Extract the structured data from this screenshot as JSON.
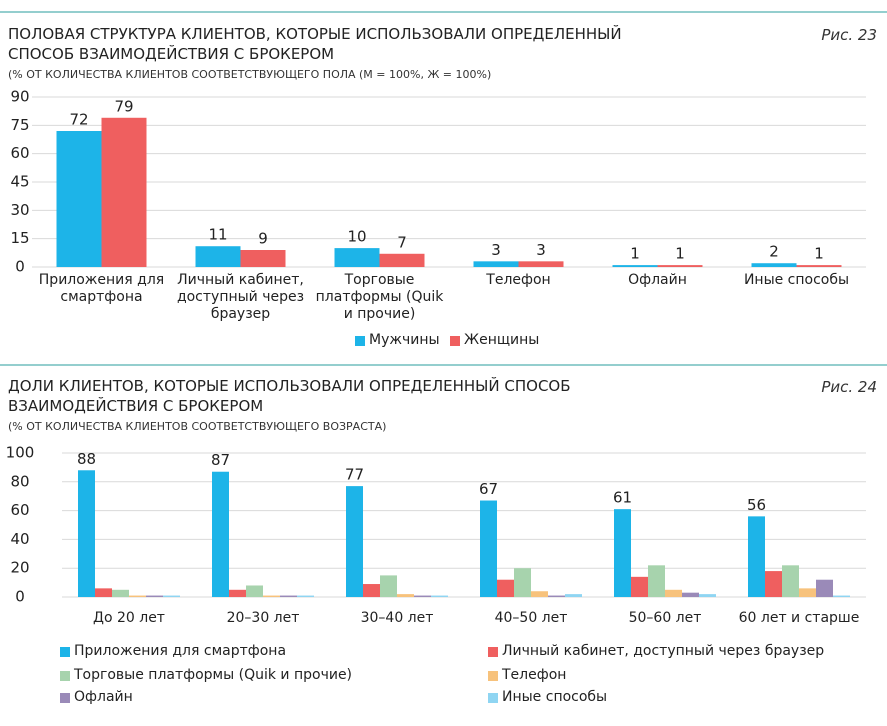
{
  "chart_data": [
    {
      "type": "bar",
      "title": "ПОЛОВАЯ СТРУКТУРА КЛИЕНТОВ, КОТОРЫЕ ИСПОЛЬЗОВАЛИ ОПРЕДЕЛЕННЫЙ СПОСОБ ВЗАИМОДЕЙСТВИЯ С БРОКЕРОМ",
      "figure_label": "Рис. 23",
      "subtitle": "(% ОТ КОЛИЧЕСТВА КЛИЕНТОВ СООТВЕТСТВУЮЩЕГО ПОЛА (М = 100%, Ж = 100%)",
      "categories": [
        "Приложения для смартфона",
        "Личный кабинет, доступный через браузер",
        "Торговые платформы (Quik и прочие)",
        "Телефон",
        "Офлайн",
        "Иные способы"
      ],
      "series": [
        {
          "name": "Мужчины",
          "color": "#1db4e8",
          "values": [
            72,
            11,
            10,
            3,
            1,
            2
          ],
          "show_values": true
        },
        {
          "name": "Женщины",
          "color": "#ef5f5f",
          "values": [
            79,
            9,
            7,
            3,
            1,
            1
          ],
          "show_values": true
        }
      ],
      "ylim": [
        0,
        90
      ],
      "yticks": [
        0,
        15,
        30,
        45,
        60,
        75,
        90
      ],
      "grid": true,
      "legend": "bottom"
    },
    {
      "type": "bar",
      "title": "ДОЛИ КЛИЕНТОВ, КОТОРЫЕ ИСПОЛЬЗОВАЛИ ОПРЕДЕЛЕННЫЙ СПОСОБ ВЗАИМОДЕЙСТВИЯ С БРОКЕРОМ",
      "figure_label": "Рис. 24",
      "subtitle": "(% ОТ КОЛИЧЕСТВА КЛИЕНТОВ СООТВЕТСТВУЮЩЕГО ВОЗРАСТА)",
      "categories": [
        "До 20 лет",
        "20–30 лет",
        "30–40 лет",
        "40–50 лет",
        "50–60 лет",
        "60 лет и старше"
      ],
      "series": [
        {
          "name": "Приложения для смартфона",
          "color": "#1db4e8",
          "values": [
            88,
            87,
            77,
            67,
            61,
            56
          ],
          "show_values": true
        },
        {
          "name": "Личный кабинет, доступный через браузер",
          "color": "#ef5f5f",
          "values": [
            6,
            5,
            9,
            12,
            14,
            18
          ],
          "show_values": false
        },
        {
          "name": "Торговые платформы (Quik и прочие)",
          "color": "#a7d3ad",
          "values": [
            5,
            8,
            15,
            20,
            22,
            22
          ],
          "show_values": false
        },
        {
          "name": "Телефон",
          "color": "#f7c27c",
          "values": [
            1,
            1,
            2,
            4,
            5,
            6
          ],
          "show_values": false
        },
        {
          "name": "Офлайн",
          "color": "#9a8ab8",
          "values": [
            1,
            1,
            1,
            1,
            3,
            12
          ],
          "show_values": false
        },
        {
          "name": "Иные способы",
          "color": "#8fd5f2",
          "values": [
            1,
            1,
            1,
            2,
            2,
            1
          ],
          "show_values": false
        }
      ],
      "ylim": [
        0,
        100
      ],
      "yticks": [
        0,
        20,
        40,
        60,
        80,
        100
      ],
      "grid": true,
      "legend": "bottom"
    }
  ]
}
